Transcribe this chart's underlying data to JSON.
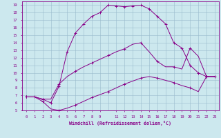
{
  "xlabel": "Windchill (Refroidissement éolien,°C)",
  "bg_color": "#cce8ee",
  "line_color": "#880088",
  "grid_color": "#99bbcc",
  "xlim": [
    -0.5,
    23.5
  ],
  "ylim": [
    5,
    19.5
  ],
  "xticks": [
    0,
    1,
    2,
    3,
    4,
    5,
    6,
    7,
    8,
    9,
    11,
    12,
    13,
    14,
    15,
    16,
    17,
    18,
    19,
    20,
    21,
    22,
    23
  ],
  "yticks": [
    5,
    6,
    7,
    8,
    9,
    10,
    11,
    12,
    13,
    14,
    15,
    16,
    17,
    18,
    19
  ],
  "line1_x": [
    0,
    1,
    2,
    3,
    4,
    5,
    6,
    7,
    8,
    9,
    10,
    11,
    12,
    13,
    14,
    15,
    16,
    17,
    18,
    19,
    20,
    21,
    22,
    23
  ],
  "line1_y": [
    6.8,
    6.8,
    6.2,
    5.2,
    5.0,
    5.3,
    5.7,
    6.2,
    6.7,
    7.1,
    7.5,
    8.0,
    8.5,
    8.9,
    9.3,
    9.5,
    9.3,
    9.0,
    8.7,
    8.3,
    8.0,
    7.5,
    9.5,
    9.5
  ],
  "line2_x": [
    0,
    1,
    2,
    3,
    4,
    5,
    6,
    7,
    8,
    9,
    10,
    11,
    12,
    13,
    14,
    15,
    16,
    17,
    18,
    19,
    20,
    21,
    22,
    23
  ],
  "line2_y": [
    6.8,
    6.8,
    6.5,
    6.0,
    8.2,
    12.8,
    15.3,
    16.5,
    17.5,
    18.0,
    19.0,
    18.9,
    18.8,
    18.9,
    19.0,
    18.5,
    17.5,
    16.5,
    14.0,
    13.3,
    11.0,
    10.0,
    9.5,
    9.5
  ],
  "line3_x": [
    0,
    1,
    2,
    3,
    4,
    5,
    6,
    7,
    8,
    9,
    10,
    11,
    12,
    13,
    14,
    15,
    16,
    17,
    18,
    19,
    20,
    21,
    22,
    23
  ],
  "line3_y": [
    6.8,
    6.8,
    6.5,
    6.5,
    8.5,
    9.5,
    10.2,
    10.8,
    11.3,
    11.8,
    12.3,
    12.8,
    13.2,
    13.8,
    14.0,
    12.8,
    11.5,
    10.8,
    10.8,
    10.5,
    13.3,
    12.2,
    9.5,
    9.5
  ]
}
